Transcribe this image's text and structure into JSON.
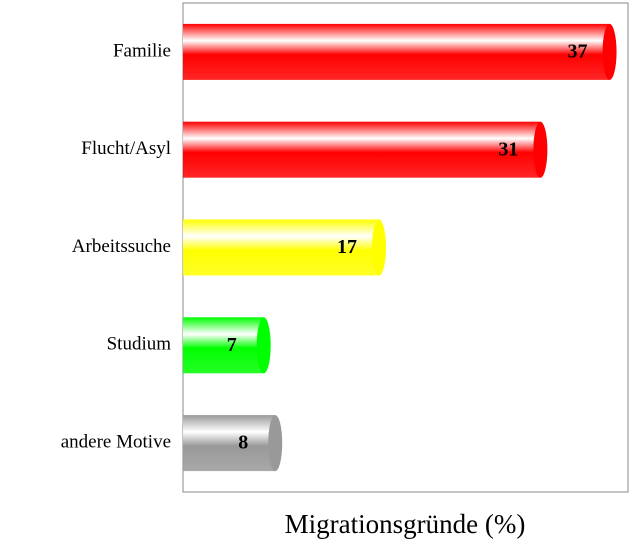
{
  "chart_data": {
    "type": "bar",
    "orientation": "horizontal",
    "xlabel": "Migrationsgründe (%)",
    "categories": [
      "Familie",
      "Flucht/Asyl",
      "Arbeitssuche",
      "Studium",
      "andere Motive"
    ],
    "values": [
      37,
      31,
      17,
      7,
      8
    ],
    "colors": [
      "#ff0000",
      "#ff0000",
      "#ffff00",
      "#00ff00",
      "#999999"
    ],
    "xlim": [
      0,
      38.6
    ]
  }
}
